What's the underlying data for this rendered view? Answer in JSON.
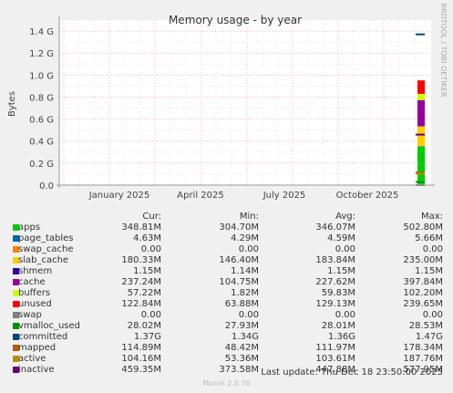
{
  "chart_data": {
    "type": "area",
    "title": "Memory usage - by year",
    "ylabel": "Bytes",
    "side_label": "RRDTOOL / TOBI OETIKER",
    "ylim": [
      0,
      1.5
    ],
    "yticks": [
      {
        "v": 0.0,
        "label": "0.0"
      },
      {
        "v": 0.2,
        "label": "0.2 G"
      },
      {
        "v": 0.4,
        "label": "0.4 G"
      },
      {
        "v": 0.6,
        "label": "0.6 G"
      },
      {
        "v": 0.8,
        "label": "0.8 G"
      },
      {
        "v": 1.0,
        "label": "1.0 G"
      },
      {
        "v": 1.2,
        "label": "1.2 G"
      },
      {
        "v": 1.4,
        "label": "1.4 G"
      }
    ],
    "x_tick_labels": [
      "January 2025",
      "April 2025",
      "July 2025",
      "October 2025"
    ],
    "stack_order_bottom_to_top": [
      "apps",
      "page_tables",
      "swap_cache",
      "slab_cache",
      "shmem",
      "cache",
      "buffers",
      "unused"
    ],
    "stack_values_gb": {
      "apps": 0.3488,
      "page_tables": 0.0046,
      "swap_cache": 0.0,
      "slab_cache": 0.1803,
      "shmem": 0.0012,
      "cache": 0.2372,
      "buffers": 0.0572,
      "unused": 0.1228
    },
    "lines_gb": {
      "committed": 1.37,
      "swap": 0.0,
      "vmalloc_used": 0.028,
      "mapped": 0.115,
      "active": 0.104,
      "inactive": 0.459
    },
    "legend_headers": [
      "Cur:",
      "Min:",
      "Avg:",
      "Max:"
    ],
    "legend": [
      {
        "name": "apps",
        "color": "#00cc00",
        "cur": "348.81M",
        "min": "304.70M",
        "avg": "346.07M",
        "max": "502.80M"
      },
      {
        "name": "page_tables",
        "color": "#0066b3",
        "cur": "4.63M",
        "min": "4.29M",
        "avg": "4.59M",
        "max": "5.66M"
      },
      {
        "name": "swap_cache",
        "color": "#ff8000",
        "cur": "0.00",
        "min": "0.00",
        "avg": "0.00",
        "max": "0.00"
      },
      {
        "name": "slab_cache",
        "color": "#ffcc00",
        "cur": "180.33M",
        "min": "146.40M",
        "avg": "183.84M",
        "max": "235.00M"
      },
      {
        "name": "shmem",
        "color": "#330099",
        "cur": "1.15M",
        "min": "1.14M",
        "avg": "1.15M",
        "max": "1.15M"
      },
      {
        "name": "cache",
        "color": "#990099",
        "cur": "237.24M",
        "min": "104.75M",
        "avg": "227.62M",
        "max": "397.84M"
      },
      {
        "name": "buffers",
        "color": "#ccff00",
        "cur": "57.22M",
        "min": "1.82M",
        "avg": "59.83M",
        "max": "102.20M"
      },
      {
        "name": "unused",
        "color": "#ff0000",
        "cur": "122.84M",
        "min": "63.88M",
        "avg": "129.13M",
        "max": "239.65M"
      },
      {
        "name": "swap",
        "color": "#808080",
        "cur": "0.00",
        "min": "0.00",
        "avg": "0.00",
        "max": "0.00"
      },
      {
        "name": "vmalloc_used",
        "color": "#008f00",
        "cur": "28.02M",
        "min": "27.93M",
        "avg": "28.01M",
        "max": "28.53M"
      },
      {
        "name": "committed",
        "color": "#00487d",
        "cur": "1.37G",
        "min": "1.34G",
        "avg": "1.36G",
        "max": "1.47G"
      },
      {
        "name": "mapped",
        "color": "#b35a00",
        "cur": "114.89M",
        "min": "48.42M",
        "avg": "111.97M",
        "max": "178.34M"
      },
      {
        "name": "active",
        "color": "#b38f00",
        "cur": "104.16M",
        "min": "53.36M",
        "avg": "103.61M",
        "max": "187.76M"
      },
      {
        "name": "inactive",
        "color": "#6b006b",
        "cur": "459.35M",
        "min": "373.58M",
        "avg": "447.88M",
        "max": "577.95M"
      }
    ]
  },
  "footer": {
    "last_update": "Last update: Thu Dec 18 23:50:00 2025",
    "munin": "Munin 2.0.76"
  }
}
